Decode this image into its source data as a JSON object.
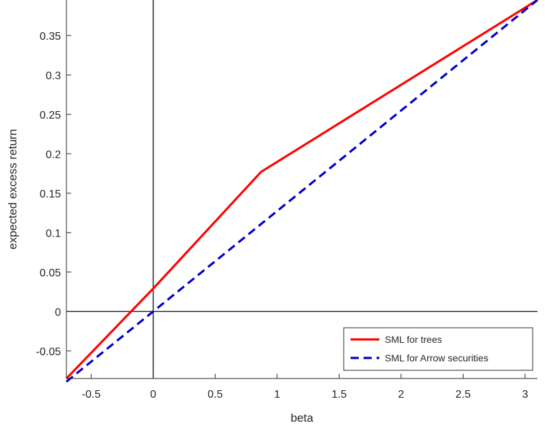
{
  "chart_data": {
    "type": "line",
    "title": "",
    "xlabel": "beta",
    "ylabel": "expected excess return",
    "xlim": [
      -0.7,
      3.1
    ],
    "ylim": [
      -0.085,
      0.395
    ],
    "xticks": [
      -0.5,
      0,
      0.5,
      1,
      1.5,
      2,
      2.5,
      3
    ],
    "xtick_labels": [
      "-0.5",
      "0",
      "0.5",
      "1",
      "1.5",
      "2",
      "2.5",
      "3"
    ],
    "yticks": [
      -0.05,
      0,
      0.05,
      0.1,
      0.15,
      0.2,
      0.25,
      0.3,
      0.35
    ],
    "ytick_labels": [
      "-0.05",
      "0",
      "0.05",
      "0.1",
      "0.15",
      "0.2",
      "0.25",
      "0.3",
      "0.35"
    ],
    "grid": false,
    "legend_position": "bottom-right",
    "reference_lines": {
      "x": 0,
      "y": 0,
      "color": "#000000"
    },
    "series": [
      {
        "name": "SML for trees",
        "color": "#ff0000",
        "style": "solid",
        "x": [
          -0.7,
          0,
          0.87,
          3.1
        ],
        "y": [
          -0.085,
          0.029,
          0.177,
          0.395
        ]
      },
      {
        "name": "SML for Arrow securities",
        "color": "#0000cc",
        "style": "dashed",
        "x": [
          -0.7,
          0,
          3.1
        ],
        "y": [
          -0.089,
          0,
          0.395
        ]
      }
    ]
  }
}
